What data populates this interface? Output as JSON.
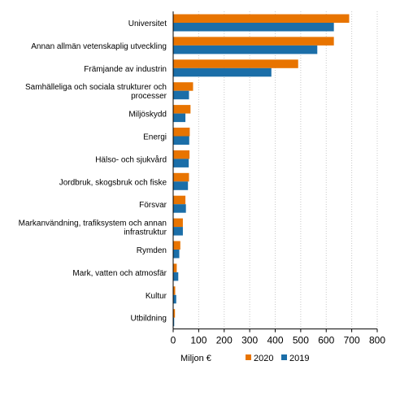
{
  "chart_data": {
    "type": "bar",
    "orientation": "horizontal",
    "categories": [
      [
        "Universitet"
      ],
      [
        "Annan allmän vetenskaplig utveckling"
      ],
      [
        "Främjande av industrin"
      ],
      [
        "Samhälleliga och sociala strukturer och",
        "processer"
      ],
      [
        "Miljöskydd"
      ],
      [
        "Energi"
      ],
      [
        "Hälso- och sjukvård"
      ],
      [
        "Jordbruk, skogsbruk och fiske"
      ],
      [
        "Försvar"
      ],
      [
        "Markanvändning, trafiksystem och annan",
        "infrastruktur"
      ],
      [
        "Rymden"
      ],
      [
        "Mark, vatten och atmosfär"
      ],
      [
        "Kultur"
      ],
      [
        "Utbildning"
      ]
    ],
    "series": [
      {
        "name": "2020",
        "color": "#e87400",
        "values": [
          690,
          630,
          490,
          78,
          68,
          65,
          64,
          62,
          48,
          38,
          28,
          14,
          8,
          7
        ]
      },
      {
        "name": "2019",
        "color": "#1b6ea8",
        "values": [
          630,
          565,
          385,
          62,
          48,
          63,
          61,
          58,
          50,
          38,
          24,
          20,
          12,
          4
        ]
      }
    ],
    "xlim": [
      0,
      800
    ],
    "xticks": [
      0,
      100,
      200,
      300,
      400,
      500,
      600,
      700,
      800
    ],
    "xlabel": "Miljon €",
    "ylabel": "",
    "grid": "vertical",
    "legend": "bottom"
  }
}
